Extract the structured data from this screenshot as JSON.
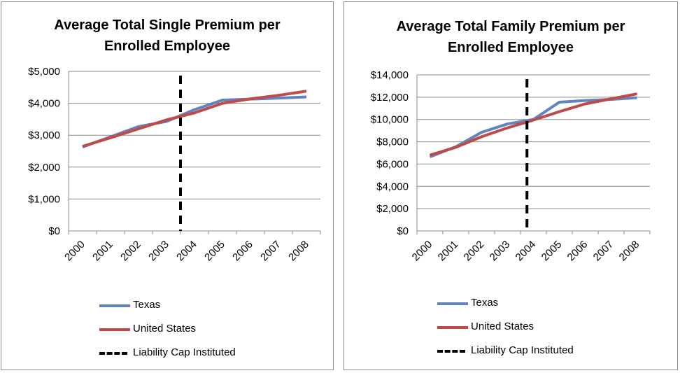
{
  "colors": {
    "texas": "#6383BE",
    "us": "#BE4B48",
    "cap": "#000000",
    "grid": "#8c8c8c"
  },
  "legend": {
    "texas": "Texas",
    "us": "United States",
    "cap": "Liability Cap Instituted"
  },
  "chart_data": [
    {
      "type": "line",
      "title_line1": "Average Total Single Premium per",
      "title_line2": "Enrolled Employee",
      "x": [
        "2000",
        "2001",
        "2002",
        "2003",
        "2004",
        "2005",
        "2006",
        "2007",
        "2008"
      ],
      "ylim": [
        0,
        5000
      ],
      "yticks": [
        0,
        1000,
        2000,
        3000,
        4000,
        5000
      ],
      "ytick_labels": [
        "$0",
        "$1,000",
        "$2,000",
        "$3,000",
        "$4,000",
        "$5,000"
      ],
      "cap_position": 3.5,
      "grid": true,
      "legend_position": "bottom",
      "series": [
        {
          "name": "Texas",
          "key": "texas",
          "values": [
            2630,
            2950,
            3270,
            3430,
            3800,
            4100,
            4130,
            4160,
            4200
          ]
        },
        {
          "name": "United States",
          "key": "us",
          "values": [
            2650,
            2920,
            3200,
            3480,
            3700,
            4000,
            4140,
            4250,
            4380
          ]
        }
      ]
    },
    {
      "type": "line",
      "title_line1": "Average Total Family Premium per",
      "title_line2": "Enrolled Employee",
      "x": [
        "2000",
        "2001",
        "2002",
        "2003",
        "2004",
        "2005",
        "2006",
        "2007",
        "2008"
      ],
      "ylim": [
        0,
        14000
      ],
      "yticks": [
        0,
        2000,
        4000,
        6000,
        8000,
        10000,
        12000,
        14000
      ],
      "ytick_labels": [
        "$0",
        "$2,000",
        "$4,000",
        "$6,000",
        "$8,000",
        "$10,000",
        "$12,000",
        "$14,000"
      ],
      "cap_position": 3.75,
      "grid": true,
      "legend_position": "bottom",
      "series": [
        {
          "name": "Texas",
          "key": "texas",
          "values": [
            6650,
            7550,
            8850,
            9600,
            10000,
            11550,
            11700,
            11800,
            11950
          ]
        },
        {
          "name": "United States",
          "key": "us",
          "values": [
            6800,
            7500,
            8450,
            9250,
            9950,
            10700,
            11400,
            11850,
            12300
          ]
        }
      ]
    }
  ]
}
